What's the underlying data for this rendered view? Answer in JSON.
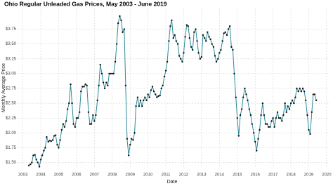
{
  "chart_data": {
    "type": "line",
    "title": "Ohio Regular Unleaded Gas Prices, May 2003 - June 2019",
    "x_label": "Date",
    "y_label": "Monthly Average Price",
    "x": [
      2003.33,
      2003.42,
      2003.5,
      2003.58,
      2003.67,
      2003.75,
      2003.83,
      2003.92,
      2004,
      2004.08,
      2004.17,
      2004.25,
      2004.33,
      2004.42,
      2004.5,
      2004.58,
      2004.67,
      2004.75,
      2004.83,
      2004.92,
      2005,
      2005.08,
      2005.17,
      2005.25,
      2005.33,
      2005.42,
      2005.5,
      2005.58,
      2005.67,
      2005.75,
      2005.83,
      2005.92,
      2006,
      2006.08,
      2006.17,
      2006.25,
      2006.33,
      2006.42,
      2006.5,
      2006.58,
      2006.67,
      2006.75,
      2006.83,
      2006.92,
      2007,
      2007.08,
      2007.17,
      2007.25,
      2007.33,
      2007.42,
      2007.5,
      2007.58,
      2007.67,
      2007.75,
      2007.83,
      2007.92,
      2008,
      2008.08,
      2008.17,
      2008.25,
      2008.33,
      2008.42,
      2008.5,
      2008.58,
      2008.67,
      2008.75,
      2008.83,
      2008.92,
      2009,
      2009.08,
      2009.17,
      2009.25,
      2009.33,
      2009.42,
      2009.5,
      2009.58,
      2009.67,
      2009.75,
      2009.83,
      2009.92,
      2010,
      2010.08,
      2010.17,
      2010.25,
      2010.33,
      2010.42,
      2010.5,
      2010.58,
      2010.67,
      2010.75,
      2010.83,
      2010.92,
      2011,
      2011.08,
      2011.17,
      2011.25,
      2011.33,
      2011.42,
      2011.5,
      2011.58,
      2011.67,
      2011.75,
      2011.83,
      2011.92,
      2012,
      2012.08,
      2012.17,
      2012.25,
      2012.33,
      2012.42,
      2012.5,
      2012.58,
      2012.67,
      2012.75,
      2012.83,
      2012.92,
      2013,
      2013.08,
      2013.17,
      2013.25,
      2013.33,
      2013.42,
      2013.5,
      2013.58,
      2013.67,
      2013.75,
      2013.83,
      2013.92,
      2014,
      2014.08,
      2014.17,
      2014.25,
      2014.33,
      2014.42,
      2014.5,
      2014.58,
      2014.67,
      2014.75,
      2014.83,
      2014.92,
      2015,
      2015.08,
      2015.17,
      2015.25,
      2015.33,
      2015.42,
      2015.5,
      2015.58,
      2015.67,
      2015.75,
      2015.83,
      2015.92,
      2016,
      2016.08,
      2016.17,
      2016.25,
      2016.33,
      2016.42,
      2016.5,
      2016.58,
      2016.67,
      2016.75,
      2016.83,
      2016.92,
      2017,
      2017.08,
      2017.17,
      2017.25,
      2017.33,
      2017.42,
      2017.5,
      2017.58,
      2017.67,
      2017.75,
      2017.83,
      2017.92,
      2018,
      2018.08,
      2018.17,
      2018.25,
      2018.33,
      2018.42,
      2018.5,
      2018.58,
      2018.67,
      2018.75,
      2018.83,
      2018.92,
      2019,
      2019.08,
      2019.17,
      2019.25,
      2019.33,
      2019.42
    ],
    "values": [
      1.45,
      1.47,
      1.5,
      1.62,
      1.63,
      1.55,
      1.5,
      1.43,
      1.55,
      1.62,
      1.7,
      1.75,
      1.93,
      1.85,
      1.87,
      1.86,
      1.88,
      1.95,
      1.96,
      1.8,
      1.75,
      1.88,
      2.05,
      2.15,
      2.1,
      2.2,
      2.4,
      2.5,
      2.82,
      2.5,
      2.15,
      2.1,
      2.25,
      2.25,
      2.35,
      2.7,
      2.78,
      2.78,
      2.82,
      2.8,
      2.35,
      2.15,
      2.15,
      2.3,
      2.2,
      2.3,
      2.55,
      2.8,
      3.15,
      3.0,
      2.85,
      2.75,
      2.85,
      2.8,
      3.0,
      3.0,
      3.0,
      3.0,
      3.2,
      3.5,
      3.85,
      3.97,
      3.9,
      3.7,
      3.75,
      2.8,
      1.9,
      1.62,
      1.8,
      1.9,
      1.88,
      2.0,
      2.45,
      2.6,
      2.45,
      2.55,
      2.45,
      2.55,
      2.6,
      2.55,
      2.65,
      2.6,
      2.72,
      2.78,
      2.7,
      2.65,
      2.6,
      2.62,
      2.63,
      2.75,
      2.8,
      2.95,
      3.05,
      3.2,
      3.55,
      3.8,
      3.9,
      3.6,
      3.65,
      3.55,
      3.5,
      3.3,
      3.25,
      3.2,
      3.35,
      3.62,
      3.82,
      3.8,
      3.6,
      3.45,
      3.4,
      3.7,
      3.75,
      3.55,
      3.35,
      3.25,
      3.28,
      3.65,
      3.6,
      3.55,
      3.7,
      3.62,
      3.58,
      3.5,
      3.45,
      3.3,
      3.2,
      3.25,
      3.35,
      3.4,
      3.55,
      3.68,
      3.7,
      3.65,
      3.75,
      3.8,
      3.45,
      3.4,
      3.0,
      2.6,
      2.25,
      1.95,
      2.3,
      2.4,
      2.6,
      2.75,
      2.65,
      2.55,
      2.4,
      2.3,
      2.15,
      2.0,
      1.85,
      1.7,
      1.9,
      2.05,
      2.3,
      2.5,
      2.3,
      2.15,
      2.15,
      2.1,
      2.1,
      2.2,
      2.25,
      2.1,
      2.25,
      2.35,
      2.25,
      2.25,
      2.2,
      2.3,
      2.5,
      2.35,
      2.45,
      2.4,
      2.5,
      2.55,
      2.5,
      2.6,
      2.75,
      2.7,
      2.75,
      2.7,
      2.75,
      2.7,
      2.55,
      2.3,
      2.05,
      1.98,
      2.35,
      2.65,
      2.65,
      2.55
    ],
    "color": "#2b8a9a",
    "marker_color": "#111111",
    "xlim": [
      2002.7,
      2020.2
    ],
    "xticks": [
      2003,
      2004,
      2005,
      2006,
      2007,
      2008,
      2009,
      2010,
      2011,
      2012,
      2013,
      2014,
      2015,
      2016,
      2017,
      2018,
      2019,
      2020
    ],
    "ylim": [
      1.4,
      4.1
    ],
    "yticks": [
      {
        "value": 1.5,
        "label": "$1.50"
      },
      {
        "value": 1.75,
        "label": "$1.75"
      },
      {
        "value": 2,
        "label": "$2.00"
      },
      {
        "value": 2.25,
        "label": "$2.25"
      },
      {
        "value": 2.5,
        "label": "$2.50"
      },
      {
        "value": 2.75,
        "label": "$2.75"
      },
      {
        "value": 3,
        "label": "$3.00"
      },
      {
        "value": 3.25,
        "label": "$3.25"
      },
      {
        "value": 3.5,
        "label": "$3.50"
      },
      {
        "value": 3.75,
        "label": "$3.75"
      }
    ],
    "grid": true
  }
}
